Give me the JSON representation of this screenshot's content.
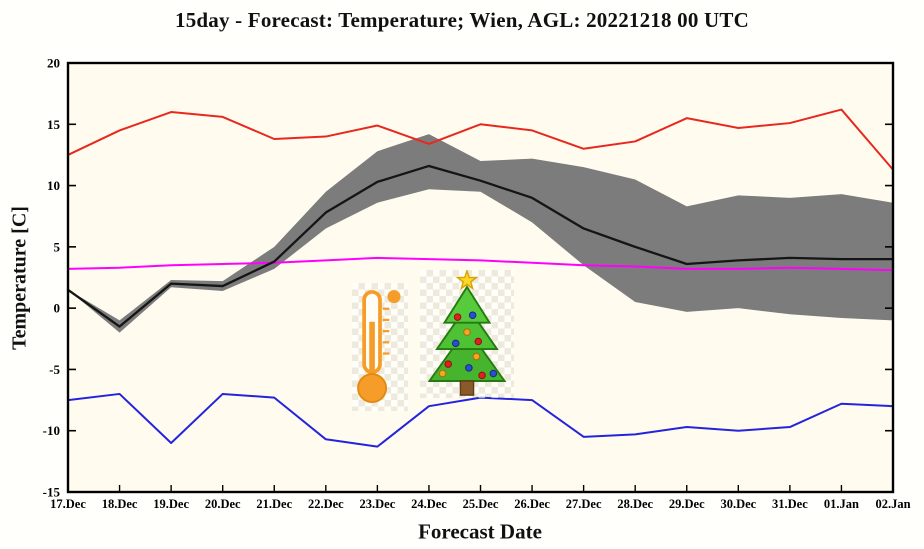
{
  "chart_data": {
    "type": "line",
    "title": "15day - Forecast: Temperature; Wien, AGL: 20221218 00 UTC",
    "xlabel": "Forecast Date",
    "ylabel": "Temperature [C]",
    "ylim": [
      -15,
      20
    ],
    "yticks": [
      20,
      15,
      10,
      5,
      0,
      -5,
      -10,
      -15
    ],
    "grid": false,
    "legend": "none",
    "plot_background": "#fffcef",
    "frame_color": "#000000",
    "categories": [
      "17.Dec",
      "18.Dec",
      "19.Dec",
      "20.Dec",
      "21.Dec",
      "22.Dec",
      "23.Dec",
      "24.Dec",
      "25.Dec",
      "26.Dec",
      "27.Dec",
      "28.Dec",
      "29.Dec",
      "30.Dec",
      "31.Dec",
      "01.Jan",
      "02.Jan"
    ],
    "series": [
      {
        "name": "climatological-max",
        "color": "#e8281e",
        "width": 2,
        "values": [
          12.5,
          14.5,
          16.0,
          15.6,
          13.8,
          14.0,
          14.9,
          13.4,
          15.0,
          14.5,
          13.0,
          13.6,
          15.5,
          14.7,
          15.1,
          16.2,
          11.3
        ]
      },
      {
        "name": "climatological-mean",
        "color": "#ff00ff",
        "width": 2,
        "values": [
          3.2,
          3.3,
          3.5,
          3.6,
          3.7,
          3.9,
          4.1,
          4.0,
          3.9,
          3.7,
          3.5,
          3.4,
          3.2,
          3.2,
          3.3,
          3.2,
          3.1
        ]
      },
      {
        "name": "climatological-min",
        "color": "#2424dd",
        "width": 2,
        "values": [
          -7.5,
          -7.0,
          -11.0,
          -7.0,
          -7.3,
          -10.7,
          -11.3,
          -8.0,
          -7.3,
          -7.5,
          -10.5,
          -10.3,
          -9.7,
          -10.0,
          -9.7,
          -7.8,
          -8.0
        ]
      },
      {
        "name": "ensemble-mean",
        "color": "#151515",
        "width": 2.3,
        "values": [
          1.5,
          -1.5,
          2.0,
          1.8,
          3.8,
          7.8,
          10.3,
          11.6,
          10.4,
          9.0,
          6.5,
          5.0,
          3.6,
          3.9,
          4.1,
          4.0,
          4.0
        ]
      }
    ],
    "band": {
      "name": "ensemble-spread",
      "color": "#7c7c7c",
      "upper": [
        1.5,
        -1.0,
        2.3,
        2.2,
        5.0,
        9.5,
        12.8,
        14.2,
        12.0,
        12.2,
        11.5,
        10.5,
        8.3,
        9.2,
        9.0,
        9.3,
        8.6
      ],
      "lower": [
        1.5,
        -2.0,
        1.7,
        1.4,
        3.2,
        6.5,
        8.6,
        9.7,
        9.5,
        7.0,
        3.5,
        0.5,
        -0.3,
        0.0,
        -0.5,
        -0.8,
        -1.0
      ]
    },
    "decorations": [
      "thermometer-icon",
      "christmas-tree-icon"
    ]
  }
}
